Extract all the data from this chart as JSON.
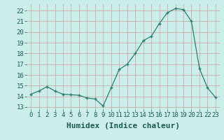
{
  "x": [
    0,
    1,
    2,
    3,
    4,
    5,
    6,
    7,
    8,
    9,
    10,
    11,
    12,
    13,
    14,
    15,
    16,
    17,
    18,
    19,
    20,
    21,
    22,
    23
  ],
  "y": [
    14.2,
    14.5,
    14.9,
    14.5,
    14.2,
    14.15,
    14.1,
    13.85,
    13.75,
    13.1,
    14.8,
    16.5,
    17.0,
    18.0,
    19.2,
    19.6,
    20.8,
    21.8,
    22.2,
    22.1,
    21.0,
    16.6,
    14.8,
    13.9
  ],
  "line_color": "#2d7d6e",
  "marker": "+",
  "bg_color": "#cceee8",
  "grid_color_major": "#b8b0b0",
  "grid_color_minor": "#d0c8c8",
  "xlabel": "Humidex (Indice chaleur)",
  "ylim": [
    12.8,
    22.6
  ],
  "xlim": [
    -0.5,
    23.5
  ],
  "yticks": [
    13,
    14,
    15,
    16,
    17,
    18,
    19,
    20,
    21,
    22
  ],
  "xticks": [
    0,
    1,
    2,
    3,
    4,
    5,
    6,
    7,
    8,
    9,
    10,
    11,
    12,
    13,
    14,
    15,
    16,
    17,
    18,
    19,
    20,
    21,
    22,
    23
  ],
  "tick_fontsize": 6.5,
  "xlabel_fontsize": 8
}
